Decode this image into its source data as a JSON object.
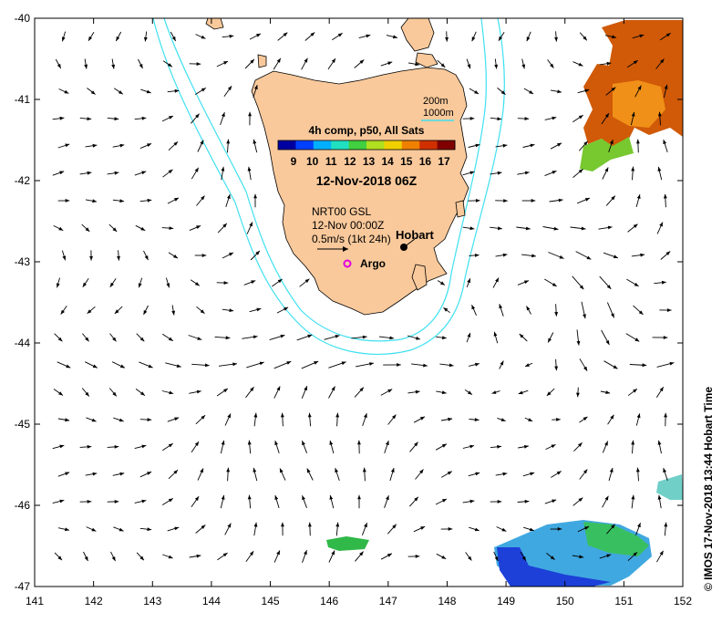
{
  "axes": {
    "lon_ticks": [
      "141",
      "142",
      "143",
      "144",
      "145",
      "146",
      "147",
      "148",
      "149",
      "150",
      "151",
      "152"
    ],
    "lat_ticks": [
      "-40",
      "-41",
      "-42",
      "-43",
      "-44",
      "-45",
      "-46",
      "-47"
    ]
  },
  "legend": {
    "bathymetry": [
      "200m",
      "1000m"
    ],
    "colorbar_title": "4h comp, p50, All Sats",
    "colorbar_ticks": [
      "9",
      "10",
      "11",
      "12",
      "13",
      "14",
      "15",
      "16",
      "17"
    ],
    "colorbar_colors": [
      "#0000a0",
      "#0040ff",
      "#00b0ff",
      "#20e0c0",
      "#40d040",
      "#b0e020",
      "#f0d000",
      "#f08000",
      "#d03000",
      "#800000"
    ],
    "date": "12-Nov-2018 06Z"
  },
  "current_legend": {
    "station": "NRT00 GSL",
    "time": "12-Nov 00:00Z",
    "scale": "0.5m/s (1kt 24h)"
  },
  "places": {
    "hobart": "Hobart",
    "argo": "Argo"
  },
  "credit": "© IMOS 17-Nov-2018 13:44 Hobart Time",
  "colors": {
    "land": "#f9c99b",
    "isobath": "#40e0f0",
    "argo": "#e000e0"
  }
}
